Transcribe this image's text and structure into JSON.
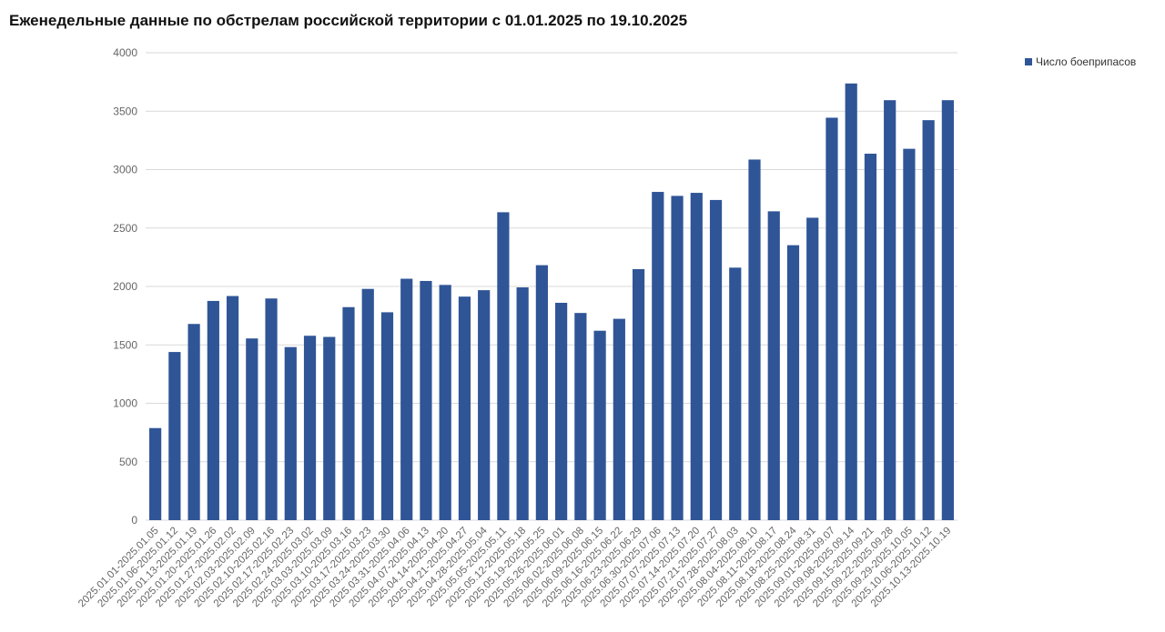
{
  "chart_data": {
    "type": "bar",
    "title": "Еженедельные данные по обстрелам российской территории с 01.01.2025 по 19.10.2025",
    "xlabel": "",
    "ylabel": "",
    "ylim": [
      0,
      4000
    ],
    "yticks": [
      0,
      500,
      1000,
      1500,
      2000,
      2500,
      3000,
      3500,
      4000
    ],
    "grid": true,
    "legend_position": "top-right",
    "bar_color": "#2F5597",
    "categories": [
      "2025.01.01-2025.01.05",
      "2025.01.06-2025.01.12",
      "2025.01.13-2025.01.19",
      "2025.01.20-2025.01.26",
      "2025.01.27-2025.02.02",
      "2025.02.03-2025.02.09",
      "2025.02.10-2025.02.16",
      "2025.02.17-2025.02.23",
      "2025.02.24-2025.03.02",
      "2025.03.03-2025.03.09",
      "2025.03.10-2025.03.16",
      "2025.03.17-2025.03.23",
      "2025.03.24-2025.03.30",
      "2025.03.31-2025.04.06",
      "2025.04.07-2025.04.13",
      "2025.04.14-2025.04.20",
      "2025.04.21-2025.04.27",
      "2025.04.28-2025.05.04",
      "2025.05.05-2025.05.11",
      "2025.05.12-2025.05.18",
      "2025.05.19-2025.05.25",
      "2025.05.26-2025.06.01",
      "2025.06.02-2025.06.08",
      "2025.06.09-2025.06.15",
      "2025.06.16-2025.06.22",
      "2025.06.23-2025.06.29",
      "2025.06.30-2025.07.06",
      "2025.07.07-2025.07.13",
      "2025.07.14-2025.07.20",
      "2025.07.21-2025.07.27",
      "2025.07.28-2025.08.03",
      "2025.08.04-2025.08.10",
      "2025.08.11-2025.08.17",
      "2025.08.18-2025.08.24",
      "2025.08.25-2025.08.31",
      "2025.09.01-2025.09.07",
      "2025.09.08-2025.09.14",
      "2025.09.15-2025.09.21",
      "2025.09.22-2025.09.28",
      "2025.09.29-2025.10.05",
      "2025.10.06-2025.10.12",
      "2025.10.13-2025.10.19"
    ],
    "series": [
      {
        "name": "Число боеприпасов",
        "values": [
          788,
          1439,
          1679,
          1876,
          1918,
          1555,
          1897,
          1481,
          1578,
          1568,
          1823,
          1979,
          1779,
          2066,
          2047,
          2013,
          1913,
          1968,
          2635,
          1992,
          2182,
          1860,
          1773,
          1621,
          1723,
          2148,
          2809,
          2775,
          2801,
          2740,
          2161,
          3086,
          2643,
          2353,
          2588,
          3444,
          3737,
          3136,
          3594,
          3178,
          3423,
          3594
        ]
      }
    ]
  }
}
